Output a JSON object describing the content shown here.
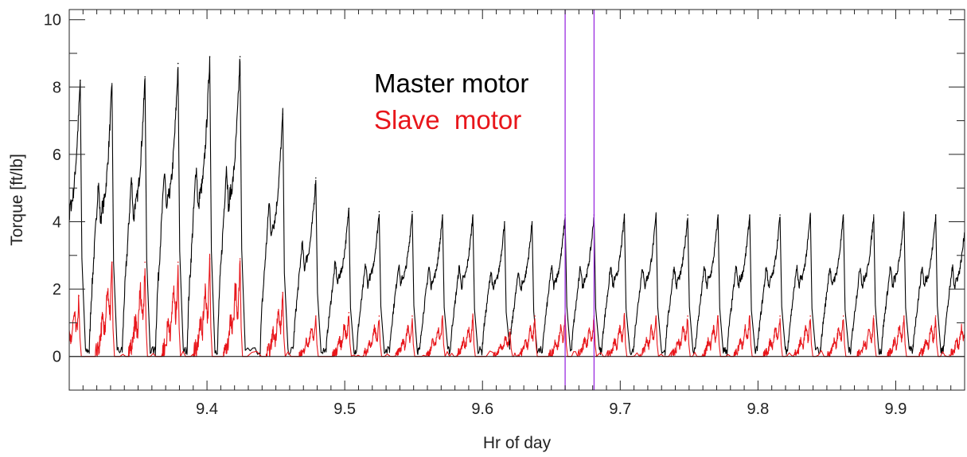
{
  "chart_data": {
    "type": "line",
    "title": "",
    "xlabel": "Hr of day",
    "ylabel": "Torque [ft/lb]",
    "xlim": [
      9.3,
      9.95
    ],
    "ylim": [
      -1,
      10.3
    ],
    "x_ticks": [
      {
        "value": 9.4,
        "label": "9.4"
      },
      {
        "value": 9.5,
        "label": "9.5"
      },
      {
        "value": 9.6,
        "label": "9.6"
      },
      {
        "value": 9.7,
        "label": "9.7"
      },
      {
        "value": 9.8,
        "label": "9.8"
      },
      {
        "value": 9.9,
        "label": "9.9"
      }
    ],
    "y_ticks": [
      {
        "value": 0,
        "label": "0"
      },
      {
        "value": 2,
        "label": "2"
      },
      {
        "value": 4,
        "label": "4"
      },
      {
        "value": 6,
        "label": "6"
      },
      {
        "value": 8,
        "label": "8"
      },
      {
        "value": 10,
        "label": "10"
      }
    ],
    "grid": false,
    "legend": {
      "placement": "upper-middle",
      "entries": [
        {
          "label": "Master motor",
          "color": "#000000"
        },
        {
          "label": "Slave  motor",
          "color": "#e8161b"
        }
      ]
    },
    "series": [
      {
        "name": "Master motor",
        "color": "#000000",
        "cycle_peaks": [
          {
            "x": 9.308,
            "peak": 8.2
          },
          {
            "x": 9.331,
            "peak": 8.1
          },
          {
            "x": 9.355,
            "peak": 8.3
          },
          {
            "x": 9.379,
            "peak": 8.7
          },
          {
            "x": 9.402,
            "peak": 8.9
          },
          {
            "x": 9.424,
            "peak": 8.9
          },
          {
            "x": 9.455,
            "peak": 7.2
          },
          {
            "x": 9.479,
            "peak": 5.3
          },
          {
            "x": 9.503,
            "peak": 4.4
          },
          {
            "x": 9.525,
            "peak": 4.3
          },
          {
            "x": 9.549,
            "peak": 4.3
          },
          {
            "x": 9.571,
            "peak": 4.2
          },
          {
            "x": 9.593,
            "peak": 4.2
          },
          {
            "x": 9.616,
            "peak": 4.0
          },
          {
            "x": 9.636,
            "peak": 4.0
          },
          {
            "x": 9.66,
            "peak": 4.2
          },
          {
            "x": 9.681,
            "peak": 4.2
          },
          {
            "x": 9.703,
            "peak": 4.2
          },
          {
            "x": 9.726,
            "peak": 4.2
          },
          {
            "x": 9.749,
            "peak": 4.2
          },
          {
            "x": 9.771,
            "peak": 4.2
          },
          {
            "x": 9.794,
            "peak": 4.2
          },
          {
            "x": 9.816,
            "peak": 4.2
          },
          {
            "x": 9.838,
            "peak": 4.2
          },
          {
            "x": 9.862,
            "peak": 4.2
          },
          {
            "x": 9.884,
            "peak": 4.2
          },
          {
            "x": 9.906,
            "peak": 4.2
          },
          {
            "x": 9.929,
            "peak": 4.2
          },
          {
            "x": 9.951,
            "peak": 4.2
          }
        ]
      },
      {
        "name": "Slave  motor",
        "color": "#e8161b",
        "cycle_peaks": [
          {
            "x": 9.307,
            "peak": 1.8
          },
          {
            "x": 9.331,
            "peak": 2.8
          },
          {
            "x": 9.355,
            "peak": 2.8
          },
          {
            "x": 9.379,
            "peak": 2.8
          },
          {
            "x": 9.402,
            "peak": 2.9
          },
          {
            "x": 9.424,
            "peak": 2.9
          },
          {
            "x": 9.455,
            "peak": 1.9
          },
          {
            "x": 9.479,
            "peak": 1.2
          },
          {
            "x": 9.503,
            "peak": 1.3
          },
          {
            "x": 9.525,
            "peak": 1.2
          },
          {
            "x": 9.549,
            "peak": 1.2
          },
          {
            "x": 9.571,
            "peak": 1.2
          },
          {
            "x": 9.593,
            "peak": 1.2
          },
          {
            "x": 9.62,
            "peak": 0.8
          },
          {
            "x": 9.638,
            "peak": 1.2
          },
          {
            "x": 9.66,
            "peak": 1.2
          },
          {
            "x": 9.681,
            "peak": 1.2
          },
          {
            "x": 9.703,
            "peak": 1.2
          },
          {
            "x": 9.726,
            "peak": 1.2
          },
          {
            "x": 9.749,
            "peak": 1.2
          },
          {
            "x": 9.771,
            "peak": 1.2
          },
          {
            "x": 9.794,
            "peak": 1.2
          },
          {
            "x": 9.816,
            "peak": 1.2
          },
          {
            "x": 9.838,
            "peak": 1.2
          },
          {
            "x": 9.862,
            "peak": 1.2
          },
          {
            "x": 9.884,
            "peak": 1.2
          },
          {
            "x": 9.906,
            "peak": 1.2
          },
          {
            "x": 9.929,
            "peak": 1.2
          },
          {
            "x": 9.951,
            "peak": 1.2
          }
        ]
      }
    ],
    "reference_lines": [
      {
        "axis": "y",
        "value": 0,
        "color": "#000000"
      },
      {
        "axis": "x",
        "value": 9.66,
        "color": "#9a2ce0"
      },
      {
        "axis": "x",
        "value": 9.681,
        "color": "#9a2ce0"
      }
    ]
  }
}
